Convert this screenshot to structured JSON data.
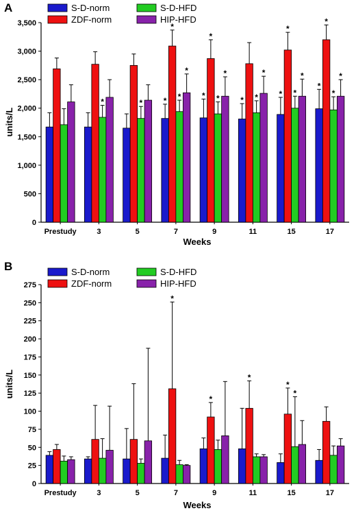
{
  "chart_data": [
    {
      "type": "bar",
      "panel_label": "A",
      "xlabel": "Weeks",
      "ylabel": "units/L",
      "ylim": [
        0,
        3500
      ],
      "yticks": [
        0,
        500,
        1000,
        1500,
        2000,
        2500,
        3000,
        3500
      ],
      "ytick_labels": [
        "0",
        "500",
        "1,000",
        "1,500",
        "2,000",
        "2,500",
        "3,000",
        "3,500"
      ],
      "categories": [
        "Prestudy",
        "3",
        "5",
        "7",
        "9",
        "11",
        "15",
        "17"
      ],
      "legend_placement": "top-left",
      "grid": false,
      "series": [
        {
          "name": "S-D-norm",
          "color": "#1a1acc",
          "values": [
            1670,
            1670,
            1650,
            1820,
            1830,
            1810,
            1890,
            1990
          ],
          "errors": [
            250,
            250,
            250,
            250,
            330,
            270,
            300,
            340
          ],
          "stars": [
            false,
            false,
            false,
            true,
            true,
            true,
            true,
            true
          ]
        },
        {
          "name": "ZDF-norm",
          "color": "#ee1111",
          "values": [
            2690,
            2770,
            2750,
            3090,
            2870,
            2780,
            3020,
            3200
          ],
          "errors": [
            190,
            220,
            200,
            280,
            330,
            370,
            310,
            260
          ],
          "stars": [
            false,
            false,
            false,
            true,
            true,
            false,
            true,
            true
          ]
        },
        {
          "name": "S-D-HFD",
          "color": "#22cc22",
          "values": [
            1710,
            1840,
            1820,
            1940,
            1900,
            1920,
            2000,
            1970
          ],
          "errors": [
            280,
            210,
            210,
            200,
            210,
            210,
            210,
            230
          ],
          "stars": [
            false,
            true,
            true,
            true,
            true,
            true,
            true,
            true
          ]
        },
        {
          "name": "HIP-HFD",
          "color": "#8822aa",
          "values": [
            2110,
            2190,
            2140,
            2270,
            2210,
            2260,
            2210,
            2210
          ],
          "errors": [
            300,
            310,
            270,
            330,
            340,
            300,
            300,
            290
          ],
          "stars": [
            false,
            false,
            false,
            true,
            true,
            true,
            true,
            true
          ]
        }
      ]
    },
    {
      "type": "bar",
      "panel_label": "B",
      "xlabel": "Weeks",
      "ylabel": "units/L",
      "ylim": [
        0,
        275
      ],
      "yticks": [
        0,
        25,
        50,
        75,
        100,
        125,
        150,
        175,
        200,
        225,
        250,
        275
      ],
      "ytick_labels": [
        "0",
        "25",
        "50",
        "75",
        "100",
        "125",
        "150",
        "175",
        "200",
        "225",
        "250",
        "275"
      ],
      "categories": [
        "Prestudy",
        "3",
        "5",
        "7",
        "9",
        "11",
        "15",
        "17"
      ],
      "legend_placement": "top-left",
      "grid": false,
      "series": [
        {
          "name": "S-D-norm",
          "color": "#1a1acc",
          "values": [
            39,
            34,
            34,
            35,
            48,
            48,
            29,
            32
          ],
          "errors": [
            5,
            3,
            42,
            32,
            15,
            56,
            12,
            15
          ],
          "stars": [
            false,
            false,
            false,
            false,
            false,
            false,
            false,
            false
          ]
        },
        {
          "name": "ZDF-norm",
          "color": "#ee1111",
          "values": [
            47,
            61,
            61,
            131,
            92,
            104,
            96,
            86
          ],
          "errors": [
            7,
            47,
            77,
            120,
            20,
            38,
            36,
            20
          ],
          "stars": [
            false,
            false,
            false,
            true,
            true,
            true,
            true,
            false
          ]
        },
        {
          "name": "S-D-HFD",
          "color": "#22cc22",
          "values": [
            31,
            35,
            28,
            26,
            47,
            37,
            51,
            39
          ],
          "errors": [
            7,
            27,
            6,
            6,
            13,
            4,
            69,
            13
          ],
          "stars": [
            false,
            false,
            false,
            false,
            false,
            false,
            true,
            false
          ]
        },
        {
          "name": "HIP-HFD",
          "color": "#8822aa",
          "values": [
            33,
            46,
            59,
            25,
            66,
            37,
            54,
            52
          ],
          "errors": [
            4,
            61,
            128,
            1,
            75,
            3,
            33,
            10
          ],
          "stars": [
            false,
            false,
            false,
            false,
            false,
            false,
            false,
            false
          ]
        }
      ]
    }
  ]
}
